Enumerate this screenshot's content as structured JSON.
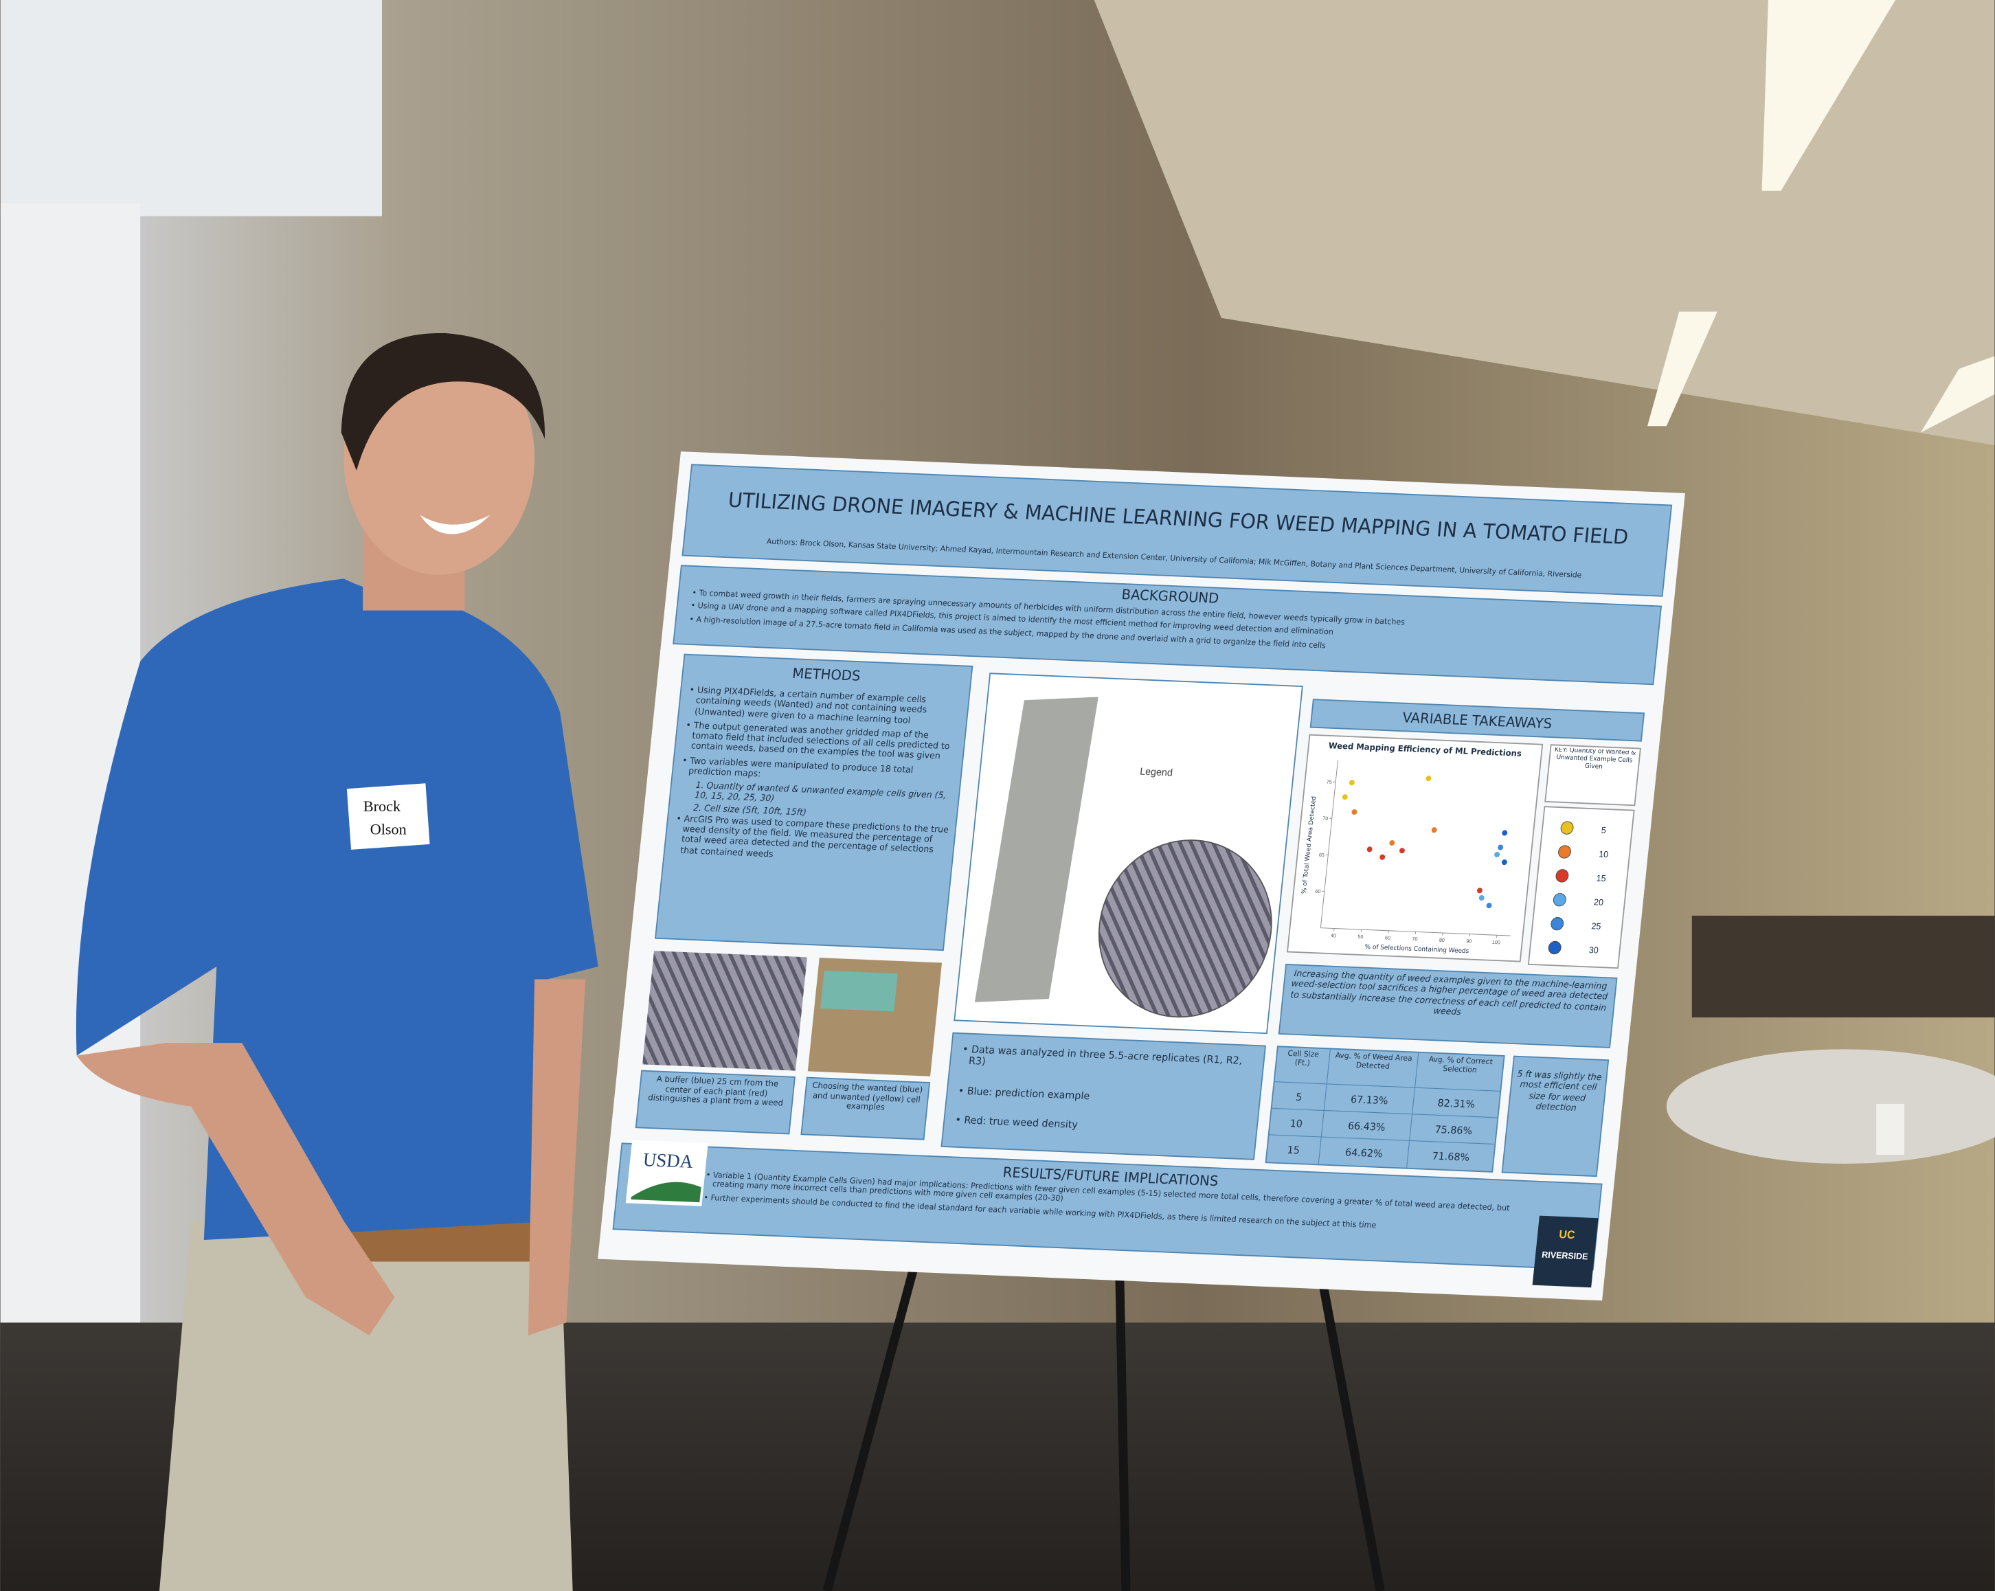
{
  "name_tag": {
    "first": "Brock",
    "last": "Olson"
  },
  "poster": {
    "title": "UTILIZING DRONE IMAGERY & MACHINE LEARNING FOR WEED MAPPING IN A TOMATO FIELD",
    "authors": "Authors: Brock Olson, Kansas State University; Ahmed Kayad, Intermountain Research and Extension Center, University of California; Mik McGiffen, Botany and Plant Sciences Department, University of California, Riverside",
    "background": {
      "heading": "BACKGROUND",
      "bullets": [
        "To combat weed growth in their fields, farmers are spraying unnecessary amounts of herbicides with uniform distribution across the entire field, however weeds typically grow in batches",
        "Using a UAV drone and a mapping software called PIX4DFields, this project is aimed to identify the most efficient method for improving weed detection and elimination",
        "A high-resolution image of a 27.5-acre tomato field in California was used as the subject, mapped by the drone and overlaid with a grid to organize the field into cells"
      ]
    },
    "methods": {
      "heading": "METHODS",
      "bullets": [
        "Using PIX4DFields, a certain number of example cells containing weeds (Wanted) and not containing weeds (Unwanted) were given to a machine learning tool",
        "The output generated was another gridded map of the tomato field that included selections of all cells predicted to contain weeds, based on the examples the tool was given",
        "Two variables were manipulated to produce 18 total prediction maps:",
        "ArcGIS Pro was used to compare these predictions to the true weed density of the field. We measured the percentage of total weed area detected and the percentage of selections that contained weeds"
      ],
      "sub": [
        "1. Quantity of wanted & unwanted example cells given (5, 10, 15, 20, 25, 30)",
        "2. Cell size (5ft, 10ft, 15ft)"
      ]
    },
    "captions": [
      "A buffer (blue) 25 cm from the center of each plant (red) distinguishes a plant from a weed",
      "Choosing the wanted (blue) and unwanted (yellow) cell examples"
    ],
    "map_legend": "Legend",
    "data_bullets": [
      "Data was analyzed in three 5.5-acre replicates (R1, R2, R3)",
      "Blue: prediction example",
      "Red: true weed density"
    ],
    "takeaways_heading": "VARIABLE TAKEAWAYS",
    "chart": {
      "title": "Weed Mapping Efficiency of ML Predictions",
      "x_label": "% of Selections Containing Weeds",
      "y_label": "% of Total Weed Area Detected",
      "xlim": [
        35,
        105
      ],
      "ylim": [
        55,
        78
      ],
      "xticks": [
        40,
        50,
        60,
        70,
        80,
        90,
        100
      ],
      "yticks": [
        60,
        65,
        70,
        75
      ],
      "key_title": "KEY: Quantity of Wanted & Unwanted Example Cells Given",
      "groups": [
        {
          "name": "5",
          "color": "#e8c020"
        },
        {
          "name": "10",
          "color": "#e87a2a"
        },
        {
          "name": "15",
          "color": "#d83a2a"
        },
        {
          "name": "20",
          "color": "#5aa8e8"
        },
        {
          "name": "25",
          "color": "#3a86dc"
        },
        {
          "name": "30",
          "color": "#1f5fc8"
        }
      ],
      "points": [
        {
          "x": 39,
          "y": 73,
          "group": 0
        },
        {
          "x": 41,
          "y": 75,
          "group": 0
        },
        {
          "x": 69,
          "y": 76,
          "group": 0
        },
        {
          "x": 43,
          "y": 71,
          "group": 1
        },
        {
          "x": 58,
          "y": 67,
          "group": 1
        },
        {
          "x": 73,
          "y": 69,
          "group": 1
        },
        {
          "x": 50,
          "y": 66,
          "group": 2
        },
        {
          "x": 55,
          "y": 65,
          "group": 2
        },
        {
          "x": 62,
          "y": 66,
          "group": 2
        },
        {
          "x": 97,
          "y": 66,
          "group": 3
        },
        {
          "x": 93,
          "y": 60,
          "group": 3
        },
        {
          "x": 98,
          "y": 67,
          "group": 4
        },
        {
          "x": 96,
          "y": 59,
          "group": 4
        },
        {
          "x": 99,
          "y": 69,
          "group": 5
        },
        {
          "x": 100,
          "y": 65,
          "group": 5
        },
        {
          "x": 92,
          "y": 61,
          "group": 2
        }
      ]
    },
    "takeaway_text": "Increasing the quantity of weed examples given to the machine-learning weed-selection tool sacrifices a higher percentage of weed area detected to substantially increase the correctness of each cell predicted to contain weeds",
    "table": {
      "header": [
        "Cell Size (Ft.)",
        "Avg. % of Weed Area Detected",
        "Avg. % of Correct Selection"
      ],
      "rows": [
        [
          "5",
          "67.13%",
          "82.31%"
        ],
        [
          "10",
          "66.43%",
          "75.86%"
        ],
        [
          "15",
          "64.62%",
          "71.68%"
        ]
      ]
    },
    "cell_size_note": "5 ft was slightly the most efficient cell size for weed detection",
    "results": {
      "heading": "RESULTS/FUTURE IMPLICATIONS",
      "bullets": [
        "Variable 1 (Quantity Example Cells Given) had major implications: Predictions with fewer given cell examples (5-15) selected more total cells, therefore covering a greater % of total weed area detected, but creating many more incorrect cells than predictions with more given cell examples (20-30)",
        "Further experiments should be conducted to find the ideal standard for each variable while working with PIX4DFields, as there is limited research on the subject at this time"
      ]
    },
    "logos": {
      "usda": "USDA",
      "uc": "UC",
      "riverside": "RIVERSIDE"
    }
  }
}
